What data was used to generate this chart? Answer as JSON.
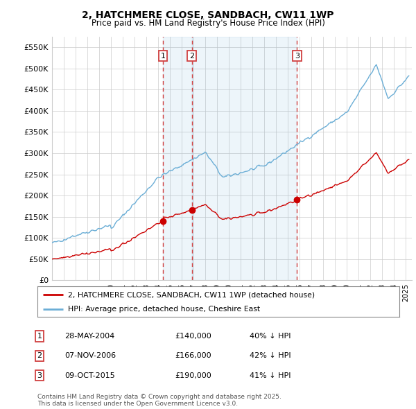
{
  "title": "2, HATCHMERE CLOSE, SANDBACH, CW11 1WP",
  "subtitle": "Price paid vs. HM Land Registry's House Price Index (HPI)",
  "ylabel_ticks": [
    "£0",
    "£50K",
    "£100K",
    "£150K",
    "£200K",
    "£250K",
    "£300K",
    "£350K",
    "£400K",
    "£450K",
    "£500K",
    "£550K"
  ],
  "ytick_values": [
    0,
    50000,
    100000,
    150000,
    200000,
    250000,
    300000,
    350000,
    400000,
    450000,
    500000,
    550000
  ],
  "ylim": [
    0,
    575000
  ],
  "xlim_start": 1995.0,
  "xlim_end": 2025.5,
  "transaction_dates": [
    2004.41,
    2006.85,
    2015.77
  ],
  "transaction_labels": [
    "1",
    "2",
    "3"
  ],
  "transaction_prices": [
    140000,
    166000,
    190000
  ],
  "legend_line1": "2, HATCHMERE CLOSE, SANDBACH, CW11 1WP (detached house)",
  "legend_line2": "HPI: Average price, detached house, Cheshire East",
  "table_rows": [
    {
      "num": "1",
      "date": "28-MAY-2004",
      "price": "£140,000",
      "change": "40% ↓ HPI"
    },
    {
      "num": "2",
      "date": "07-NOV-2006",
      "price": "£166,000",
      "change": "42% ↓ HPI"
    },
    {
      "num": "3",
      "date": "09-OCT-2015",
      "price": "£190,000",
      "change": "41% ↓ HPI"
    }
  ],
  "footer": "Contains HM Land Registry data © Crown copyright and database right 2025.\nThis data is licensed under the Open Government Licence v3.0.",
  "hpi_color": "#6baed6",
  "price_color": "#cc0000",
  "vline_color": "#d04040",
  "shade_color": "#ddeeff",
  "background_color": "#ffffff",
  "grid_color": "#cccccc"
}
